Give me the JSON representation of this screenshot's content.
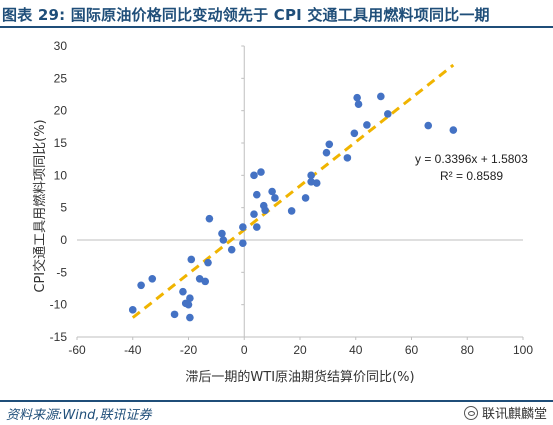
{
  "page": {
    "title": "图表 29:  国际原油价格同比变动领先于 CPI 交通工具用燃料项同比一期",
    "source": "资料来源:Wind,联讯证券",
    "watermark": "联讯麒麟堂",
    "watermark_icon": "wechat-icon",
    "accent_color": "#1f4e79"
  },
  "chart_data": {
    "type": "scatter",
    "title": "",
    "xlabel": "滞后一期的WTI原油期货结算价同比(%)",
    "ylabel": "CPI交通工具用燃料项同比(%)",
    "xlim": [
      -60,
      100
    ],
    "ylim": [
      -15,
      30
    ],
    "xticks": [
      -60,
      -40,
      -20,
      0,
      20,
      40,
      60,
      80,
      100
    ],
    "yticks": [
      -15,
      -10,
      -5,
      0,
      5,
      10,
      15,
      20,
      25,
      30
    ],
    "grid": false,
    "point_color": "#4472c4",
    "trend_color": "#f0b400",
    "trendline": {
      "slope": 0.3396,
      "intercept": 1.5803,
      "x_range": [
        -40,
        75
      ],
      "equation": "y = 0.3396x + 1.5803",
      "r2": "R² = 0.8589"
    },
    "points": [
      [
        -40,
        -10.8
      ],
      [
        -37,
        -7.0
      ],
      [
        -33,
        -6.0
      ],
      [
        -25,
        -11.5
      ],
      [
        -22,
        -8.0
      ],
      [
        -21,
        -9.8
      ],
      [
        -20,
        -10.0
      ],
      [
        -19.5,
        -9.0
      ],
      [
        -19.5,
        -12.0
      ],
      [
        -19,
        -3.0
      ],
      [
        -16,
        -6.0
      ],
      [
        -13,
        -3.5
      ],
      [
        -14,
        -6.4
      ],
      [
        -12.5,
        3.3
      ],
      [
        -8,
        1.0
      ],
      [
        -7.5,
        0.0
      ],
      [
        -4.5,
        -1.5
      ],
      [
        -0.5,
        2.0
      ],
      [
        -0.5,
        -0.5
      ],
      [
        3.5,
        4.0
      ],
      [
        3.5,
        10.0
      ],
      [
        4.5,
        7.0
      ],
      [
        4.5,
        2.0
      ],
      [
        6,
        10.5
      ],
      [
        7,
        5.3
      ],
      [
        7.5,
        4.6
      ],
      [
        10,
        7.5
      ],
      [
        11,
        6.5
      ],
      [
        17,
        4.5
      ],
      [
        22,
        6.5
      ],
      [
        24,
        10.0
      ],
      [
        24,
        9.0
      ],
      [
        26,
        8.8
      ],
      [
        29.5,
        13.5
      ],
      [
        30.5,
        14.8
      ],
      [
        37,
        12.7
      ],
      [
        39.5,
        16.5
      ],
      [
        40.5,
        22.0
      ],
      [
        41,
        21.0
      ],
      [
        44,
        17.8
      ],
      [
        49,
        22.2
      ],
      [
        51.5,
        19.5
      ],
      [
        66,
        17.7
      ],
      [
        75,
        17.0
      ]
    ]
  }
}
